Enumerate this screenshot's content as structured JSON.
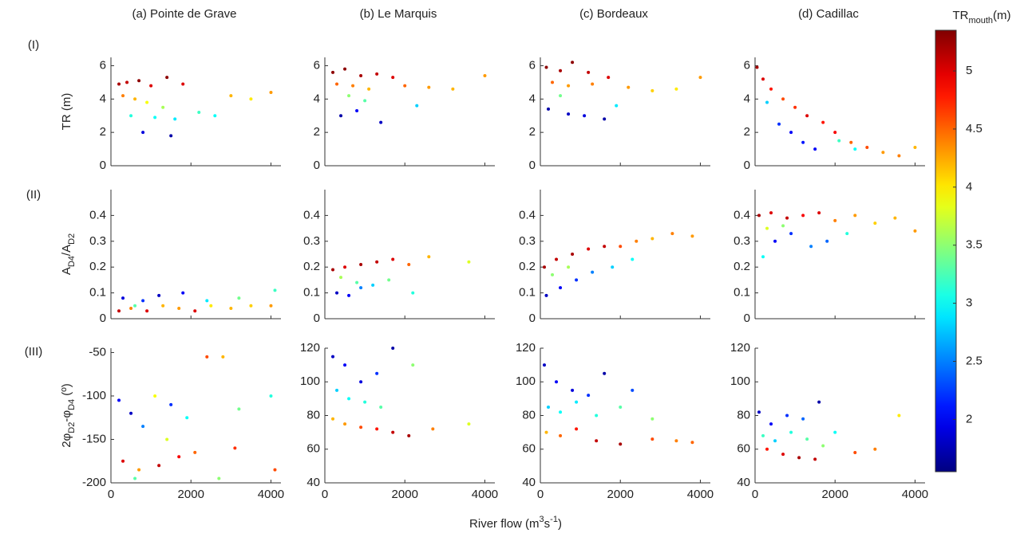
{
  "chart_data": [
    {
      "type": "scatter",
      "title": "(a) Pointe de Grave",
      "row_label": "(I)",
      "ylabel": [
        {
          "text": "TR (m)"
        }
      ],
      "x": [
        200,
        400,
        700,
        1000,
        1400,
        1800,
        300,
        600,
        900,
        1300,
        500,
        1100,
        1600,
        2200,
        2600,
        3000,
        3500,
        4000,
        800,
        1500
      ],
      "y": [
        4.9,
        5.0,
        5.1,
        4.8,
        5.3,
        4.9,
        4.2,
        4.0,
        3.8,
        3.5,
        3.0,
        2.9,
        2.8,
        3.2,
        3.0,
        4.2,
        4.0,
        4.4,
        2.0,
        1.8
      ],
      "c": [
        5.2,
        5.1,
        5.3,
        5.0,
        5.3,
        5.0,
        4.4,
        4.2,
        3.9,
        3.6,
        3.1,
        3.0,
        2.9,
        3.2,
        3.0,
        4.2,
        4.0,
        4.3,
        1.9,
        1.7
      ],
      "xlim": [
        0,
        4250
      ],
      "xticks": [
        0,
        2000,
        4000
      ],
      "ylim": [
        0,
        6.5
      ],
      "yticks": [
        0,
        2,
        4,
        6
      ]
    },
    {
      "type": "scatter",
      "title": "(b) Le Marquis",
      "x": [
        200,
        500,
        900,
        1300,
        1700,
        300,
        700,
        1100,
        2000,
        2600,
        3200,
        4000,
        400,
        800,
        1400,
        2300,
        600,
        1000
      ],
      "y": [
        5.6,
        5.8,
        5.4,
        5.5,
        5.3,
        4.9,
        4.8,
        4.6,
        4.8,
        4.7,
        4.6,
        5.4,
        3.0,
        3.3,
        2.6,
        3.6,
        4.2,
        3.9
      ],
      "c": [
        5.3,
        5.3,
        5.2,
        5.1,
        5.0,
        4.5,
        4.4,
        4.2,
        4.5,
        4.3,
        4.2,
        4.3,
        1.7,
        2.0,
        1.8,
        2.8,
        3.5,
        3.3
      ],
      "xlim": [
        0,
        4250
      ],
      "xticks": [
        0,
        2000,
        4000
      ],
      "ylim": [
        0,
        6.5
      ],
      "yticks": [
        0,
        2,
        4,
        6
      ]
    },
    {
      "type": "scatter",
      "title": "(c) Bordeaux",
      "x": [
        150,
        500,
        800,
        1200,
        1700,
        300,
        700,
        1300,
        2200,
        2800,
        3400,
        4000,
        200,
        700,
        1100,
        1600,
        500,
        1900
      ],
      "y": [
        5.9,
        5.7,
        6.2,
        5.6,
        5.3,
        5.0,
        4.8,
        4.9,
        4.7,
        4.5,
        4.6,
        5.3,
        3.4,
        3.1,
        3.0,
        2.8,
        4.2,
        3.6
      ],
      "c": [
        5.3,
        5.2,
        5.3,
        5.1,
        5.0,
        4.5,
        4.3,
        4.4,
        4.3,
        4.1,
        4.0,
        4.3,
        1.7,
        1.8,
        1.9,
        1.7,
        3.4,
        2.9
      ],
      "xlim": [
        0,
        4250
      ],
      "xticks": [
        0,
        2000,
        4000
      ],
      "ylim": [
        0,
        6.5
      ],
      "yticks": [
        0,
        2,
        4,
        6
      ]
    },
    {
      "type": "scatter",
      "title": "(d) Cadillac",
      "x": [
        50,
        200,
        400,
        700,
        1000,
        1300,
        1700,
        2000,
        2400,
        2800,
        3200,
        3600,
        4000,
        300,
        600,
        900,
        1200,
        1500,
        2100,
        2500
      ],
      "y": [
        5.9,
        5.2,
        4.6,
        4.0,
        3.5,
        3.0,
        2.6,
        2.0,
        1.4,
        1.1,
        0.8,
        0.6,
        1.1,
        3.8,
        2.5,
        2.0,
        1.4,
        1.0,
        1.5,
        1.0
      ],
      "c": [
        5.2,
        5.0,
        4.8,
        4.6,
        4.7,
        5.0,
        4.8,
        4.9,
        4.5,
        4.6,
        4.3,
        4.4,
        4.2,
        2.8,
        2.2,
        2.0,
        2.1,
        2.0,
        3.2,
        3.0
      ],
      "xlim": [
        0,
        4250
      ],
      "xticks": [
        0,
        2000,
        4000
      ],
      "ylim": [
        0,
        6.5
      ],
      "yticks": [
        0,
        2,
        4,
        6
      ]
    },
    {
      "type": "scatter",
      "row_label": "(II)",
      "ylabel": [
        {
          "text": "A"
        },
        {
          "text": "D4",
          "sub": true
        },
        {
          "text": "/A"
        },
        {
          "text": "D2",
          "sub": true
        }
      ],
      "x": [
        200,
        500,
        900,
        1300,
        1700,
        2100,
        2500,
        3000,
        3500,
        4000,
        300,
        800,
        1200,
        1800,
        2400,
        3200,
        4100,
        600
      ],
      "y": [
        0.03,
        0.04,
        0.03,
        0.05,
        0.04,
        0.03,
        0.05,
        0.04,
        0.05,
        0.05,
        0.08,
        0.07,
        0.09,
        0.1,
        0.07,
        0.08,
        0.11,
        0.05
      ],
      "c": [
        5.1,
        4.4,
        5.0,
        4.2,
        4.3,
        5.0,
        4.0,
        4.2,
        4.1,
        4.3,
        1.9,
        2.2,
        1.8,
        2.0,
        2.9,
        3.4,
        3.2,
        3.3
      ],
      "xlim": [
        0,
        4250
      ],
      "xticks": [
        0,
        2000,
        4000
      ],
      "ylim": [
        0,
        0.5
      ],
      "yticks": [
        0,
        0.1,
        0.2,
        0.3,
        0.4
      ]
    },
    {
      "type": "scatter",
      "x": [
        200,
        500,
        900,
        1300,
        1700,
        2100,
        2600,
        3600,
        300,
        600,
        900,
        1200,
        1600,
        2200,
        400,
        800
      ],
      "y": [
        0.19,
        0.2,
        0.21,
        0.22,
        0.23,
        0.21,
        0.24,
        0.22,
        0.1,
        0.09,
        0.12,
        0.13,
        0.15,
        0.1,
        0.16,
        0.14
      ],
      "c": [
        5.2,
        5.0,
        5.2,
        5.1,
        5.0,
        4.5,
        4.2,
        3.8,
        1.8,
        2.0,
        2.5,
        2.8,
        3.4,
        3.1,
        3.6,
        3.3
      ],
      "xlim": [
        0,
        4250
      ],
      "xticks": [
        0,
        2000,
        4000
      ],
      "ylim": [
        0,
        0.5
      ],
      "yticks": [
        0,
        0.1,
        0.2,
        0.3,
        0.4
      ]
    },
    {
      "type": "scatter",
      "x": [
        100,
        400,
        800,
        1200,
        1600,
        2000,
        2400,
        2800,
        3300,
        3800,
        150,
        500,
        900,
        1300,
        1800,
        2300,
        300,
        700
      ],
      "y": [
        0.2,
        0.23,
        0.25,
        0.27,
        0.28,
        0.28,
        0.3,
        0.31,
        0.33,
        0.32,
        0.09,
        0.12,
        0.15,
        0.18,
        0.2,
        0.23,
        0.17,
        0.2
      ],
      "c": [
        5.2,
        5.1,
        5.2,
        5.0,
        5.1,
        4.6,
        4.4,
        4.2,
        4.4,
        4.3,
        1.8,
        2.0,
        2.2,
        2.5,
        2.8,
        3.0,
        3.5,
        3.6
      ],
      "xlim": [
        0,
        4250
      ],
      "xticks": [
        0,
        2000,
        4000
      ],
      "ylim": [
        0,
        0.5
      ],
      "yticks": [
        0,
        0.1,
        0.2,
        0.3,
        0.4
      ]
    },
    {
      "type": "scatter",
      "x": [
        100,
        400,
        800,
        1200,
        1600,
        2000,
        2500,
        3000,
        3500,
        4000,
        200,
        500,
        900,
        1400,
        1800,
        2300,
        300,
        700
      ],
      "y": [
        0.4,
        0.41,
        0.39,
        0.4,
        0.41,
        0.38,
        0.4,
        0.37,
        0.39,
        0.34,
        0.24,
        0.3,
        0.33,
        0.28,
        0.3,
        0.33,
        0.35,
        0.36
      ],
      "c": [
        5.2,
        5.0,
        5.1,
        4.9,
        5.0,
        4.4,
        4.3,
        4.1,
        4.2,
        4.3,
        3.0,
        2.0,
        2.2,
        2.5,
        2.4,
        3.1,
        3.8,
        3.5
      ],
      "xlim": [
        0,
        4250
      ],
      "xticks": [
        0,
        2000,
        4000
      ],
      "ylim": [
        0,
        0.5
      ],
      "yticks": [
        0,
        0.1,
        0.2,
        0.3,
        0.4
      ]
    },
    {
      "type": "scatter",
      "row_label": "(III)",
      "ylabel": [
        {
          "text": "2φ"
        },
        {
          "text": "D2",
          "sub": true
        },
        {
          "text": "-φ"
        },
        {
          "text": "D4",
          "sub": true
        },
        {
          "text": " (º)"
        }
      ],
      "x": [
        200,
        500,
        800,
        1100,
        1500,
        1900,
        2400,
        2800,
        3200,
        4000,
        300,
        700,
        1200,
        1700,
        2100,
        3100,
        4100,
        600,
        1400,
        2700
      ],
      "y": [
        -105,
        -120,
        -135,
        -100,
        -110,
        -125,
        -55,
        -55,
        -115,
        -100,
        -175,
        -185,
        -180,
        -170,
        -165,
        -160,
        -185,
        -195,
        -150,
        -195
      ],
      "c": [
        2.0,
        1.8,
        2.5,
        3.9,
        2.2,
        3.0,
        4.6,
        4.2,
        3.4,
        3.1,
        5.0,
        4.3,
        5.1,
        4.9,
        4.5,
        4.7,
        4.6,
        3.3,
        3.8,
        3.5
      ],
      "xlim": [
        0,
        4250
      ],
      "xticks": [
        0,
        2000,
        4000
      ],
      "ylim": [
        -200,
        -45
      ],
      "yticks": [
        -200,
        -150,
        -100,
        -50
      ]
    },
    {
      "type": "scatter",
      "x": [
        200,
        500,
        900,
        1300,
        1700,
        2200,
        300,
        600,
        1000,
        1400,
        200,
        500,
        900,
        1300,
        1700,
        2100,
        2700,
        3600
      ],
      "y": [
        115,
        110,
        100,
        105,
        120,
        110,
        95,
        90,
        88,
        85,
        78,
        75,
        73,
        72,
        70,
        68,
        72,
        75
      ],
      "c": [
        1.8,
        2.0,
        1.9,
        2.2,
        1.7,
        3.5,
        2.8,
        3.0,
        3.1,
        3.3,
        4.2,
        4.3,
        4.6,
        4.8,
        5.1,
        5.2,
        4.4,
        3.8
      ],
      "xlim": [
        0,
        4250
      ],
      "xticks": [
        0,
        2000,
        4000
      ],
      "ylim": [
        40,
        120
      ],
      "yticks": [
        40,
        60,
        80,
        100,
        120
      ]
    },
    {
      "type": "scatter",
      "x": [
        100,
        400,
        800,
        1200,
        1600,
        2300,
        200,
        500,
        900,
        1400,
        2000,
        2800,
        150,
        500,
        900,
        1400,
        2000,
        2800,
        3400,
        3800
      ],
      "y": [
        110,
        100,
        95,
        92,
        105,
        95,
        85,
        82,
        88,
        80,
        85,
        78,
        70,
        68,
        72,
        65,
        63,
        66,
        65,
        64
      ],
      "c": [
        1.8,
        2.0,
        1.9,
        2.2,
        1.7,
        2.3,
        2.8,
        3.0,
        2.9,
        3.1,
        3.3,
        3.5,
        4.2,
        4.5,
        4.8,
        5.1,
        5.2,
        4.6,
        4.4,
        4.5
      ],
      "xlim": [
        0,
        4250
      ],
      "xticks": [
        0,
        2000,
        4000
      ],
      "ylim": [
        40,
        120
      ],
      "yticks": [
        40,
        60,
        80,
        100,
        120
      ]
    },
    {
      "type": "scatter",
      "x": [
        100,
        400,
        800,
        1200,
        1600,
        2000,
        200,
        500,
        900,
        1300,
        1700,
        2500,
        3000,
        3600,
        300,
        700,
        1100,
        1500
      ],
      "y": [
        82,
        75,
        80,
        78,
        88,
        70,
        68,
        65,
        70,
        66,
        62,
        58,
        60,
        80,
        60,
        57,
        55,
        54
      ],
      "c": [
        1.8,
        2.0,
        2.2,
        2.4,
        1.7,
        3.0,
        3.2,
        2.8,
        3.1,
        3.3,
        3.5,
        4.6,
        4.4,
        4.0,
        4.8,
        5.0,
        5.2,
        5.1
      ],
      "xlim": [
        0,
        4250
      ],
      "xticks": [
        0,
        2000,
        4000
      ],
      "ylim": [
        40,
        120
      ],
      "yticks": [
        40,
        60,
        80,
        100,
        120
      ]
    },
    {
      "type": "colorbar",
      "colormap": "jet",
      "label": [
        {
          "text": "TR"
        },
        {
          "text": "mouth",
          "sub": true
        },
        {
          "text": "(m)"
        }
      ],
      "clim": [
        1.55,
        5.35
      ],
      "ticks": [
        2,
        2.5,
        3,
        3.5,
        4,
        4.5,
        5
      ]
    }
  ],
  "xlabel": [
    {
      "text": "River flow (m"
    },
    {
      "text": "3",
      "sup": true
    },
    {
      "text": "s"
    },
    {
      "text": "-1",
      "sup": true
    },
    {
      "text": ")"
    }
  ]
}
